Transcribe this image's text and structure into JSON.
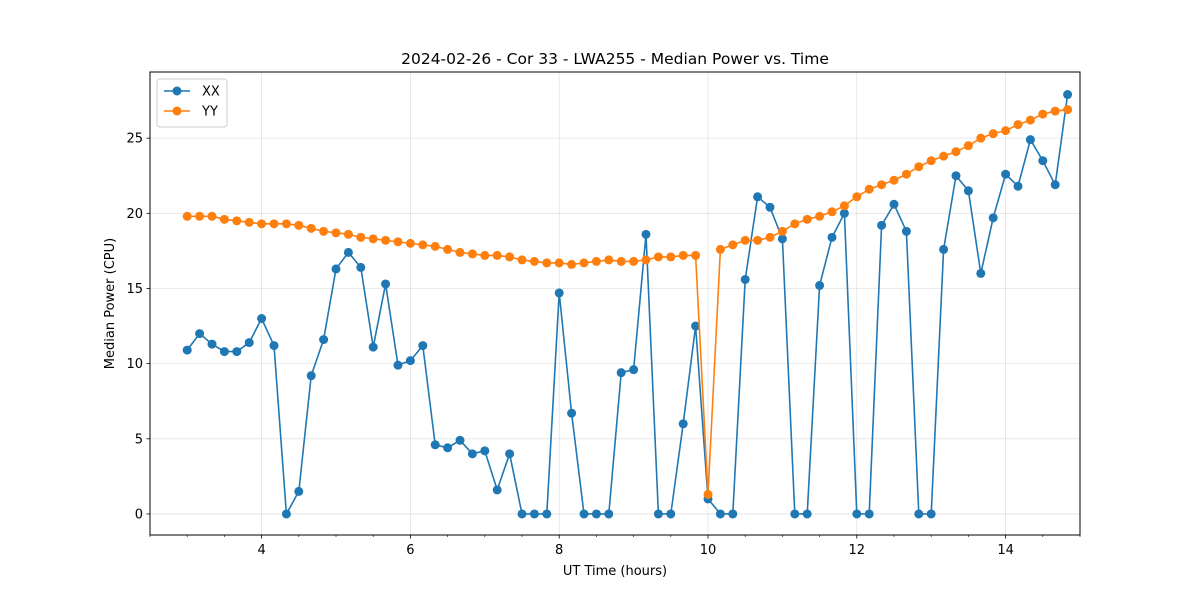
{
  "chart_data": {
    "type": "line",
    "title": "2024-02-26 - Cor 33 - LWA255 - Median Power vs. Time",
    "xlabel": "UT Time (hours)",
    "ylabel": "Median Power (CPU)",
    "xlim": [
      2.5,
      15.0
    ],
    "ylim": [
      -1.4,
      29.4
    ],
    "xticks": [
      4,
      6,
      8,
      10,
      12,
      14
    ],
    "yticks": [
      0,
      5,
      10,
      15,
      20,
      25
    ],
    "x_minor_step": 0.5,
    "grid": true,
    "legend": "top-left",
    "x": [
      3.0,
      3.1667,
      3.3333,
      3.5,
      3.6667,
      3.8333,
      4.0,
      4.1667,
      4.3333,
      4.5,
      4.6667,
      4.8333,
      5.0,
      5.1667,
      5.3333,
      5.5,
      5.6667,
      5.8333,
      6.0,
      6.1667,
      6.3333,
      6.5,
      6.6667,
      6.8333,
      7.0,
      7.1667,
      7.3333,
      7.5,
      7.6667,
      7.8333,
      8.0,
      8.1667,
      8.3333,
      8.5,
      8.6667,
      8.8333,
      9.0,
      9.1667,
      9.3333,
      9.5,
      9.6667,
      9.8333,
      10.0,
      10.1667,
      10.3333,
      10.5,
      10.6667,
      10.8333,
      11.0,
      11.1667,
      11.3333,
      11.5,
      11.6667,
      11.8333,
      12.0,
      12.1667,
      12.3333,
      12.5,
      12.6667,
      12.8333,
      13.0,
      13.1667,
      13.3333,
      13.5,
      13.6667,
      13.8333,
      14.0,
      14.1667,
      14.3333,
      14.5,
      14.6667,
      14.8333
    ],
    "series": [
      {
        "name": "XX",
        "color": "#1f77b4",
        "values": [
          10.9,
          12.0,
          11.3,
          10.8,
          10.8,
          11.4,
          13.0,
          11.2,
          0.0,
          1.5,
          9.2,
          11.6,
          16.3,
          17.4,
          16.4,
          11.1,
          15.3,
          9.9,
          10.2,
          11.2,
          4.6,
          4.4,
          4.9,
          4.0,
          4.2,
          1.6,
          4.0,
          0.0,
          0.0,
          0.0,
          14.7,
          6.7,
          0.0,
          0.0,
          0.0,
          9.4,
          9.6,
          18.6,
          0.0,
          0.0,
          6.0,
          12.5,
          1.0,
          0.0,
          0.0,
          15.6,
          21.1,
          20.4,
          18.3,
          0.0,
          0.0,
          15.2,
          18.4,
          20.0,
          0.0,
          0.0,
          19.2,
          20.6,
          18.8,
          0.0,
          0.0,
          17.6,
          22.5,
          21.5,
          16.0,
          19.7,
          22.6,
          21.8,
          24.9,
          23.5,
          21.9,
          27.9
        ]
      },
      {
        "name": "YY",
        "color": "#ff7f0e",
        "values": [
          19.8,
          19.8,
          19.8,
          19.6,
          19.5,
          19.4,
          19.3,
          19.3,
          19.3,
          19.2,
          19.0,
          18.8,
          18.7,
          18.6,
          18.4,
          18.3,
          18.2,
          18.1,
          18.0,
          17.9,
          17.8,
          17.6,
          17.4,
          17.3,
          17.2,
          17.2,
          17.1,
          16.9,
          16.8,
          16.7,
          16.7,
          16.6,
          16.7,
          16.8,
          16.9,
          16.8,
          16.8,
          16.9,
          17.1,
          17.1,
          17.2,
          17.2,
          1.3,
          17.6,
          17.9,
          18.2,
          18.2,
          18.4,
          18.8,
          19.3,
          19.6,
          19.8,
          20.1,
          20.5,
          21.1,
          21.6,
          21.9,
          22.2,
          22.6,
          23.1,
          23.5,
          23.8,
          24.1,
          24.5,
          25.0,
          25.3,
          25.5,
          25.9,
          26.2,
          26.6,
          26.8,
          26.9
        ]
      }
    ]
  }
}
